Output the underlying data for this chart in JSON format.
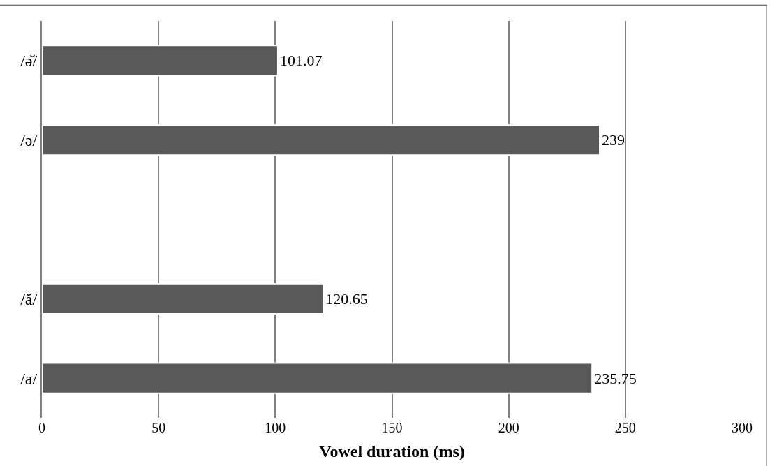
{
  "chart_data": {
    "type": "bar",
    "orientation": "horizontal",
    "xlabel": "Vowel duration (ms)",
    "categories": [
      "/ə̆/",
      "/ə/",
      null,
      "/ă/",
      "/a/"
    ],
    "values": [
      101.07,
      239,
      null,
      120.65,
      235.75
    ],
    "color": "#595959",
    "xlim": [
      0,
      300
    ],
    "xticks": [
      0,
      50,
      100,
      150,
      200,
      250,
      300
    ],
    "grid": "x",
    "data_labels": true,
    "legend": false
  }
}
